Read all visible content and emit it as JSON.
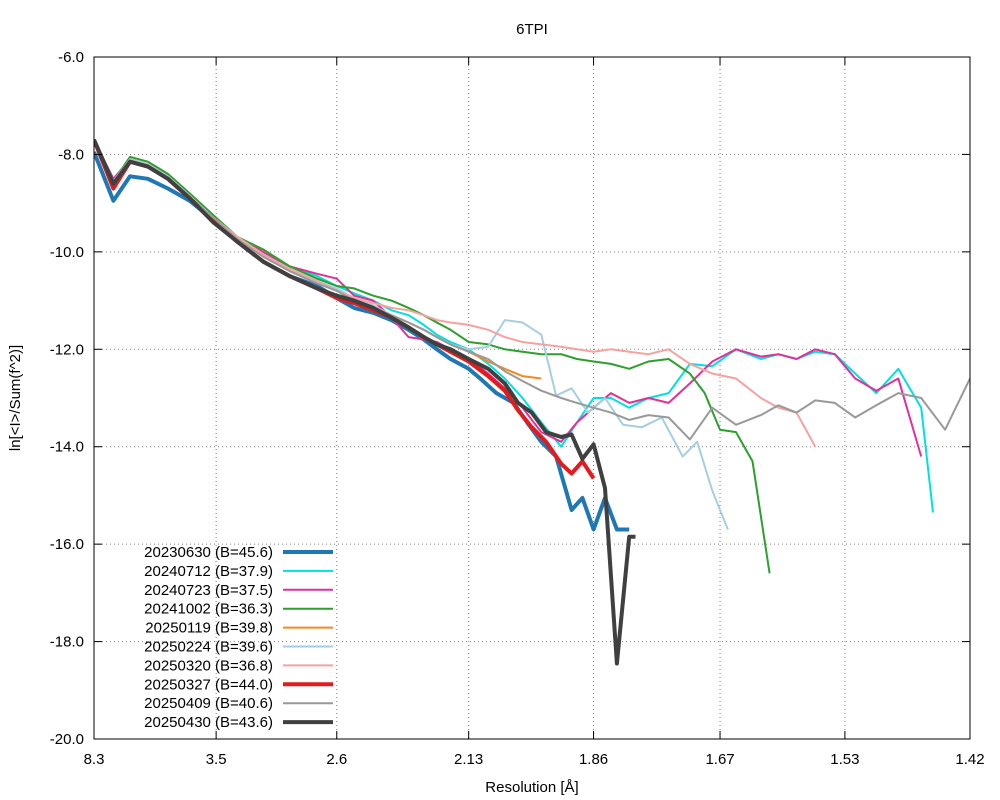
{
  "chart_data": {
    "type": "line",
    "title": "6TPI",
    "xlabel": "Resolution [Å]",
    "ylabel": "ln[<I>/Sum(f^2)]",
    "x_scale": "inverse-squared resolution (1/d^2)",
    "xlim": [
      8.3,
      1.42
    ],
    "ylim": [
      -20.0,
      -6.0
    ],
    "grid": true,
    "legend_position": "bottom-left",
    "x_ticks": [
      {
        "d": 8.3,
        "label": "8.3"
      },
      {
        "d": 3.5,
        "label": "3.5"
      },
      {
        "d": 2.6,
        "label": "2.6"
      },
      {
        "d": 2.13,
        "label": "2.13"
      },
      {
        "d": 1.86,
        "label": "1.86"
      },
      {
        "d": 1.67,
        "label": "1.67"
      },
      {
        "d": 1.53,
        "label": "1.53"
      },
      {
        "d": 1.42,
        "label": "1.42"
      }
    ],
    "y_ticks": [
      {
        "v": -6,
        "label": "-6.0"
      },
      {
        "v": -8,
        "label": "-8.0"
      },
      {
        "v": -10,
        "label": "-10.0"
      },
      {
        "v": -12,
        "label": "-12.0"
      },
      {
        "v": -14,
        "label": "-14.0"
      },
      {
        "v": -16,
        "label": "-16.0"
      },
      {
        "v": -18,
        "label": "-18.0"
      },
      {
        "v": -20,
        "label": "-20.0"
      }
    ],
    "series": [
      {
        "name": "20230630 (B=45.6)",
        "color": "#1f77b4",
        "width": 4,
        "x": [
          8.3,
          6.3,
          5.4,
          4.76,
          4.26,
          3.86,
          3.53,
          3.27,
          3.05,
          2.86,
          2.7,
          2.6,
          2.52,
          2.44,
          2.37,
          2.31,
          2.26,
          2.22,
          2.18,
          2.13,
          2.1,
          2.06,
          2.02,
          1.99,
          1.96,
          1.93,
          1.9,
          1.88,
          1.86,
          1.84,
          1.82,
          1.8
        ],
        "y": [
          -7.95,
          -8.95,
          -8.45,
          -8.5,
          -8.7,
          -8.95,
          -9.35,
          -9.8,
          -10.2,
          -10.5,
          -10.7,
          -10.95,
          -11.15,
          -11.25,
          -11.4,
          -11.6,
          -11.8,
          -12.0,
          -12.2,
          -12.4,
          -12.6,
          -12.9,
          -13.1,
          -13.5,
          -13.9,
          -14.2,
          -15.3,
          -15.05,
          -15.7,
          -15.05,
          -15.7,
          -15.7
        ]
      },
      {
        "name": "20240712 (B=37.9)",
        "color": "#00e0e0",
        "width": 2,
        "x": [
          8.3,
          6.3,
          5.4,
          4.76,
          4.26,
          3.86,
          3.53,
          3.27,
          3.05,
          2.86,
          2.7,
          2.6,
          2.52,
          2.44,
          2.37,
          2.31,
          2.26,
          2.22,
          2.18,
          2.13,
          2.08,
          2.04,
          2.0,
          1.96,
          1.92,
          1.89,
          1.86,
          1.83,
          1.8,
          1.77,
          1.74,
          1.71,
          1.68,
          1.65,
          1.62,
          1.6,
          1.58,
          1.56,
          1.54,
          1.52,
          1.5,
          1.48,
          1.46,
          1.45
        ],
        "y": [
          -7.7,
          -8.55,
          -8.1,
          -8.2,
          -8.45,
          -8.85,
          -9.3,
          -9.75,
          -10.05,
          -10.3,
          -10.5,
          -10.7,
          -10.85,
          -11.0,
          -11.2,
          -11.3,
          -11.5,
          -11.7,
          -11.85,
          -12.0,
          -12.3,
          -12.6,
          -13.0,
          -13.5,
          -14.0,
          -13.5,
          -13.0,
          -13.0,
          -13.2,
          -13.0,
          -12.9,
          -12.3,
          -12.35,
          -12.0,
          -12.2,
          -12.1,
          -12.2,
          -12.05,
          -12.1,
          -12.5,
          -12.9,
          -12.4,
          -13.2,
          -15.35
        ]
      },
      {
        "name": "20240723 (B=37.5)",
        "color": "#e0309a",
        "width": 2,
        "x": [
          8.3,
          6.3,
          5.4,
          4.76,
          4.26,
          3.86,
          3.53,
          3.27,
          3.05,
          2.86,
          2.7,
          2.6,
          2.52,
          2.44,
          2.37,
          2.31,
          2.26,
          2.22,
          2.18,
          2.13,
          2.08,
          2.04,
          2.0,
          1.96,
          1.92,
          1.89,
          1.86,
          1.83,
          1.8,
          1.77,
          1.74,
          1.71,
          1.68,
          1.65,
          1.62,
          1.6,
          1.58,
          1.56,
          1.54,
          1.52,
          1.5,
          1.48,
          1.46
        ],
        "y": [
          -7.7,
          -8.5,
          -8.1,
          -8.2,
          -8.45,
          -8.85,
          -9.3,
          -9.7,
          -10.0,
          -10.3,
          -10.45,
          -10.55,
          -10.9,
          -11.0,
          -11.35,
          -11.75,
          -11.8,
          -11.85,
          -12.0,
          -12.2,
          -12.5,
          -12.8,
          -13.2,
          -13.7,
          -13.9,
          -13.5,
          -13.2,
          -12.9,
          -13.1,
          -13.0,
          -13.1,
          -12.7,
          -12.25,
          -12.0,
          -12.15,
          -12.1,
          -12.2,
          -12.0,
          -12.1,
          -12.6,
          -12.85,
          -12.6,
          -14.2
        ]
      },
      {
        "name": "20241002 (B=36.3)",
        "color": "#2ca02c",
        "width": 2,
        "x": [
          8.3,
          6.3,
          5.4,
          4.76,
          4.26,
          3.86,
          3.53,
          3.27,
          3.05,
          2.86,
          2.7,
          2.6,
          2.52,
          2.44,
          2.37,
          2.31,
          2.26,
          2.22,
          2.18,
          2.13,
          2.08,
          2.04,
          2.0,
          1.96,
          1.92,
          1.89,
          1.86,
          1.83,
          1.8,
          1.77,
          1.74,
          1.71,
          1.69,
          1.67,
          1.65,
          1.63,
          1.61
        ],
        "y": [
          -7.7,
          -8.55,
          -8.05,
          -8.15,
          -8.4,
          -8.8,
          -9.25,
          -9.7,
          -9.95,
          -10.3,
          -10.55,
          -10.7,
          -10.75,
          -10.9,
          -11.0,
          -11.15,
          -11.3,
          -11.45,
          -11.6,
          -11.85,
          -11.9,
          -12.0,
          -12.05,
          -12.1,
          -12.1,
          -12.2,
          -12.25,
          -12.3,
          -12.4,
          -12.25,
          -12.2,
          -12.5,
          -12.9,
          -13.65,
          -13.7,
          -14.3,
          -16.6
        ]
      },
      {
        "name": "20250119 (B=39.8)",
        "color": "#f08a24",
        "width": 2,
        "x": [
          8.3,
          6.3,
          5.4,
          4.76,
          4.26,
          3.86,
          3.53,
          3.27,
          3.05,
          2.86,
          2.7,
          2.6,
          2.52,
          2.44,
          2.37,
          2.31,
          2.26,
          2.22,
          2.18,
          2.13,
          2.08,
          2.04,
          2.0,
          1.96
        ],
        "y": [
          -7.7,
          -8.55,
          -8.1,
          -8.2,
          -8.45,
          -8.85,
          -9.3,
          -9.75,
          -10.05,
          -10.4,
          -10.6,
          -10.8,
          -10.95,
          -11.1,
          -11.3,
          -11.45,
          -11.6,
          -11.75,
          -11.9,
          -12.05,
          -12.25,
          -12.4,
          -12.55,
          -12.6
        ]
      },
      {
        "name": "20250224 (B=39.6)",
        "color": "#a6cee3",
        "width": 2,
        "x": [
          8.3,
          6.3,
          5.4,
          4.76,
          4.26,
          3.86,
          3.53,
          3.27,
          3.05,
          2.86,
          2.7,
          2.6,
          2.52,
          2.44,
          2.37,
          2.31,
          2.26,
          2.22,
          2.18,
          2.13,
          2.08,
          2.04,
          2.0,
          1.96,
          1.93,
          1.9,
          1.87,
          1.84,
          1.81,
          1.78,
          1.75,
          1.72,
          1.7,
          1.68,
          1.66
        ],
        "y": [
          -7.7,
          -8.55,
          -8.1,
          -8.2,
          -8.45,
          -8.85,
          -9.3,
          -9.7,
          -10.05,
          -10.4,
          -10.6,
          -10.75,
          -10.95,
          -11.1,
          -11.3,
          -11.45,
          -11.6,
          -11.75,
          -11.9,
          -12.0,
          -11.95,
          -11.4,
          -11.45,
          -11.7,
          -12.95,
          -12.8,
          -13.3,
          -13.0,
          -13.55,
          -13.6,
          -13.4,
          -14.2,
          -13.9,
          -14.9,
          -15.7
        ]
      },
      {
        "name": "20250320 (B=36.8)",
        "color": "#f4a3a0",
        "width": 2,
        "x": [
          8.3,
          6.3,
          5.4,
          4.76,
          4.26,
          3.86,
          3.53,
          3.27,
          3.05,
          2.86,
          2.7,
          2.6,
          2.52,
          2.44,
          2.37,
          2.31,
          2.26,
          2.22,
          2.18,
          2.13,
          2.08,
          2.04,
          2.0,
          1.96,
          1.92,
          1.89,
          1.86,
          1.83,
          1.8,
          1.77,
          1.74,
          1.71,
          1.68,
          1.65,
          1.62,
          1.6,
          1.58,
          1.56
        ],
        "y": [
          -7.7,
          -8.6,
          -8.15,
          -8.25,
          -8.5,
          -8.9,
          -9.3,
          -9.7,
          -10.05,
          -10.35,
          -10.6,
          -10.8,
          -10.95,
          -11.05,
          -11.15,
          -11.2,
          -11.3,
          -11.4,
          -11.45,
          -11.5,
          -11.6,
          -11.75,
          -11.85,
          -11.9,
          -11.95,
          -12.0,
          -12.05,
          -12.0,
          -12.05,
          -12.1,
          -12.0,
          -12.3,
          -12.5,
          -12.6,
          -13.0,
          -13.2,
          -13.3,
          -14.0
        ]
      },
      {
        "name": "20250327 (B=44.0)",
        "color": "#e41a1c",
        "width": 4,
        "x": [
          8.3,
          6.3,
          5.4,
          4.76,
          4.26,
          3.86,
          3.53,
          3.27,
          3.05,
          2.86,
          2.7,
          2.6,
          2.52,
          2.44,
          2.37,
          2.31,
          2.26,
          2.22,
          2.18,
          2.13,
          2.08,
          2.04,
          2.01,
          1.98,
          1.95,
          1.92,
          1.9,
          1.88,
          1.86
        ],
        "y": [
          -7.7,
          -8.7,
          -8.15,
          -8.25,
          -8.5,
          -8.9,
          -9.35,
          -9.8,
          -10.2,
          -10.5,
          -10.75,
          -10.95,
          -11.05,
          -11.2,
          -11.35,
          -11.55,
          -11.75,
          -11.9,
          -12.05,
          -12.25,
          -12.55,
          -12.85,
          -13.25,
          -13.6,
          -13.9,
          -14.35,
          -14.55,
          -14.3,
          -14.65
        ]
      },
      {
        "name": "20250409 (B=40.6)",
        "color": "#999999",
        "width": 2,
        "x": [
          8.3,
          6.3,
          5.4,
          4.76,
          4.26,
          3.86,
          3.53,
          3.27,
          3.05,
          2.86,
          2.7,
          2.6,
          2.52,
          2.44,
          2.37,
          2.31,
          2.26,
          2.22,
          2.18,
          2.13,
          2.08,
          2.04,
          2.0,
          1.96,
          1.92,
          1.89,
          1.86,
          1.83,
          1.8,
          1.77,
          1.74,
          1.71,
          1.68,
          1.65,
          1.62,
          1.6,
          1.58,
          1.56,
          1.54,
          1.52,
          1.5,
          1.48,
          1.46,
          1.44,
          1.42
        ],
        "y": [
          -7.7,
          -8.6,
          -8.15,
          -8.25,
          -8.5,
          -8.9,
          -9.3,
          -9.75,
          -10.1,
          -10.4,
          -10.65,
          -10.8,
          -11.0,
          -11.15,
          -11.3,
          -11.45,
          -11.6,
          -11.75,
          -11.9,
          -12.05,
          -12.2,
          -12.45,
          -12.65,
          -12.85,
          -13.0,
          -13.1,
          -13.2,
          -13.3,
          -13.45,
          -13.35,
          -13.4,
          -13.85,
          -13.2,
          -13.55,
          -13.35,
          -13.15,
          -13.3,
          -13.05,
          -13.1,
          -13.4,
          -13.15,
          -12.9,
          -13.0,
          -13.65,
          -12.6
        ]
      },
      {
        "name": "20250430 (B=43.6)",
        "color": "#404040",
        "width": 4,
        "x": [
          8.3,
          6.3,
          5.4,
          4.76,
          4.26,
          3.86,
          3.53,
          3.27,
          3.05,
          2.86,
          2.7,
          2.6,
          2.52,
          2.44,
          2.37,
          2.31,
          2.26,
          2.22,
          2.18,
          2.13,
          2.08,
          2.04,
          2.01,
          1.98,
          1.95,
          1.92,
          1.9,
          1.88,
          1.86,
          1.84,
          1.82,
          1.8,
          1.79
        ],
        "y": [
          -7.7,
          -8.6,
          -8.15,
          -8.25,
          -8.5,
          -8.9,
          -9.4,
          -9.8,
          -10.2,
          -10.5,
          -10.75,
          -10.9,
          -11.0,
          -11.15,
          -11.35,
          -11.55,
          -11.75,
          -11.9,
          -12.0,
          -12.2,
          -12.4,
          -12.7,
          -13.1,
          -13.3,
          -13.7,
          -13.8,
          -13.75,
          -14.25,
          -13.95,
          -14.85,
          -18.45,
          -15.85,
          -15.85
        ]
      }
    ]
  }
}
